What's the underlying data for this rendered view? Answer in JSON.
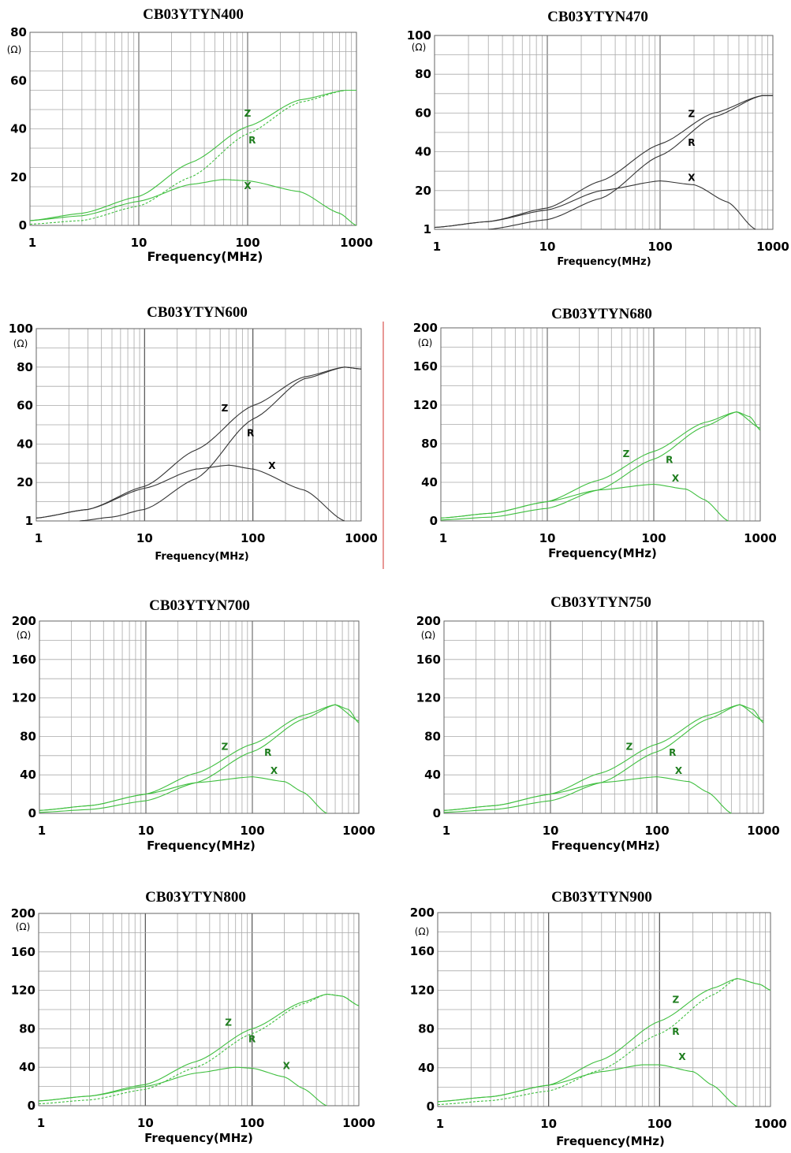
{
  "colors": {
    "green": "#3fbf3f",
    "green_label": "#1e7d1e",
    "black": "#333333",
    "divider": "#d9534f"
  },
  "chart_data": [
    {
      "type": "line",
      "title": "CB03YTYN400",
      "xlabel": "Frequency(MHz)",
      "unit": "(Ω)",
      "x_scale": "log",
      "xlim": [
        1,
        1000
      ],
      "xticks": [
        "1",
        "10",
        "100",
        "1000"
      ],
      "ylim": [
        0,
        80
      ],
      "yticks": [
        "0",
        "20",
        "40",
        "60",
        "80"
      ],
      "color": "green",
      "series": [
        {
          "name": "Z",
          "label_at": [
            100,
            45
          ],
          "x": [
            1,
            3,
            10,
            30,
            100,
            300,
            800,
            1000
          ],
          "y": [
            2,
            5,
            12,
            26,
            41,
            52,
            56,
            56
          ]
        },
        {
          "name": "R",
          "label_at": [
            110,
            34
          ],
          "dashed": true,
          "x": [
            1,
            3,
            10,
            30,
            100,
            300,
            800,
            1000
          ],
          "y": [
            0.5,
            2,
            8,
            20,
            38,
            51,
            56,
            56
          ]
        },
        {
          "name": "X",
          "label_at": [
            100,
            15
          ],
          "x": [
            1,
            3,
            10,
            30,
            60,
            100,
            300,
            700,
            1000
          ],
          "y": [
            2,
            4,
            10,
            17,
            19,
            18.5,
            14,
            5,
            0
          ]
        }
      ]
    },
    {
      "type": "line",
      "title": "CB03YTYN470",
      "xlabel": "Frequency(MHz)",
      "unit": "(Ω)",
      "x_scale": "log",
      "xlim": [
        1,
        1000
      ],
      "xticks": [
        "1",
        "10",
        "100",
        "1000"
      ],
      "ylim": [
        0,
        100
      ],
      "yticks": [
        "1",
        "20",
        "40",
        "60",
        "80",
        "100"
      ],
      "color": "black",
      "series": [
        {
          "name": "Z",
          "label_at": [
            190,
            58
          ],
          "x": [
            1,
            3,
            10,
            30,
            100,
            300,
            800,
            1000
          ],
          "y": [
            1,
            4,
            11,
            25,
            44,
            60,
            69,
            69
          ]
        },
        {
          "name": "R",
          "label_at": [
            190,
            43
          ],
          "x": [
            3,
            10,
            30,
            100,
            300,
            800,
            1000
          ],
          "y": [
            0,
            5,
            16,
            38,
            58,
            69,
            69
          ]
        },
        {
          "name": "X",
          "label_at": [
            190,
            25
          ],
          "x": [
            1,
            3,
            10,
            30,
            100,
            200,
            400,
            700
          ],
          "y": [
            1,
            4,
            10,
            20,
            25,
            23,
            14,
            0
          ]
        }
      ]
    },
    {
      "type": "line",
      "title": "CB03YTYN600",
      "xlabel": "Frequency(MHz)",
      "unit": "(Ω)",
      "x_scale": "log",
      "xlim": [
        1,
        1000
      ],
      "xticks": [
        "1",
        "10",
        "100",
        "1000"
      ],
      "ylim": [
        0,
        100
      ],
      "yticks": [
        "1",
        "20",
        "40",
        "60",
        "80",
        "100"
      ],
      "color": "black",
      "series": [
        {
          "name": "Z",
          "label_at": [
            55,
            57
          ],
          "x": [
            1,
            3,
            10,
            30,
            100,
            300,
            700,
            1000
          ],
          "y": [
            1.5,
            6,
            18,
            37,
            60,
            75,
            80,
            79
          ]
        },
        {
          "name": "R",
          "label_at": [
            95,
            44
          ],
          "x": [
            2.5,
            5,
            10,
            30,
            100,
            300,
            700,
            1000
          ],
          "y": [
            0,
            2,
            6,
            22,
            53,
            74,
            80,
            79
          ]
        },
        {
          "name": "X",
          "label_at": [
            150,
            27
          ],
          "x": [
            1,
            3,
            10,
            30,
            60,
            100,
            300,
            700
          ],
          "y": [
            1.5,
            6,
            17,
            27,
            29,
            27,
            16,
            0
          ]
        }
      ]
    },
    {
      "type": "line",
      "title": "CB03YTYN680",
      "xlabel": "Frequency(MHz)",
      "unit": "(Ω)",
      "x_scale": "log",
      "xlim": [
        1,
        1000
      ],
      "xticks": [
        "1",
        "10",
        "100",
        "1000"
      ],
      "ylim": [
        0,
        200
      ],
      "yticks": [
        "0",
        "40",
        "80",
        "120",
        "160",
        "200"
      ],
      "color": "green",
      "series": [
        {
          "name": "Z",
          "label_at": [
            55,
            66
          ],
          "x": [
            1,
            3,
            10,
            30,
            100,
            300,
            600,
            1000
          ],
          "y": [
            3,
            8,
            20,
            42,
            72,
            102,
            113,
            96
          ]
        },
        {
          "name": "R",
          "label_at": [
            140,
            60
          ],
          "x": [
            1,
            3,
            10,
            30,
            100,
            300,
            600,
            800,
            1000
          ],
          "y": [
            1,
            4,
            13,
            32,
            64,
            98,
            113,
            108,
            94
          ]
        },
        {
          "name": "X",
          "label_at": [
            160,
            41
          ],
          "x": [
            1,
            3,
            10,
            30,
            100,
            200,
            300,
            500
          ],
          "y": [
            3,
            8,
            20,
            32,
            38,
            33,
            22,
            0
          ]
        }
      ]
    },
    {
      "type": "line",
      "title": "CB03YTYN700",
      "xlabel": "Frequency(MHz)",
      "unit": "(Ω)",
      "x_scale": "log",
      "xlim": [
        1,
        1000
      ],
      "xticks": [
        "1",
        "10",
        "100",
        "1000"
      ],
      "ylim": [
        0,
        200
      ],
      "yticks": [
        "0",
        "40",
        "80",
        "120",
        "160",
        "200"
      ],
      "color": "green",
      "series": [
        {
          "name": "Z",
          "label_at": [
            55,
            66
          ],
          "x": [
            1,
            3,
            10,
            30,
            100,
            300,
            600,
            1000
          ],
          "y": [
            3,
            8,
            20,
            42,
            72,
            102,
            113,
            96
          ]
        },
        {
          "name": "R",
          "label_at": [
            140,
            60
          ],
          "x": [
            1,
            3,
            10,
            30,
            100,
            300,
            600,
            800,
            1000
          ],
          "y": [
            1,
            4,
            13,
            32,
            64,
            98,
            113,
            108,
            94
          ]
        },
        {
          "name": "X",
          "label_at": [
            160,
            41
          ],
          "x": [
            1,
            3,
            10,
            30,
            100,
            200,
            300,
            500
          ],
          "y": [
            3,
            8,
            20,
            32,
            38,
            33,
            22,
            0
          ]
        }
      ]
    },
    {
      "type": "line",
      "title": "CB03YTYN750",
      "xlabel": "Frequency(MHz)",
      "unit": "(Ω)",
      "x_scale": "log",
      "xlim": [
        1,
        1000
      ],
      "xticks": [
        "1",
        "10",
        "100",
        "1000"
      ],
      "ylim": [
        0,
        200
      ],
      "yticks": [
        "0",
        "40",
        "80",
        "120",
        "160",
        "200"
      ],
      "color": "green",
      "series": [
        {
          "name": "Z",
          "label_at": [
            55,
            66
          ],
          "x": [
            1,
            3,
            10,
            30,
            100,
            300,
            600,
            1000
          ],
          "y": [
            3,
            8,
            20,
            42,
            72,
            102,
            113,
            96
          ]
        },
        {
          "name": "R",
          "label_at": [
            140,
            60
          ],
          "x": [
            1,
            3,
            10,
            30,
            100,
            300,
            600,
            800,
            1000
          ],
          "y": [
            1,
            4,
            13,
            32,
            64,
            98,
            113,
            108,
            94
          ]
        },
        {
          "name": "X",
          "label_at": [
            160,
            41
          ],
          "x": [
            1,
            3,
            10,
            30,
            100,
            200,
            300,
            500
          ],
          "y": [
            3,
            8,
            20,
            32,
            38,
            33,
            22,
            0
          ]
        }
      ]
    },
    {
      "type": "line",
      "title": "CB03YTYN800",
      "xlabel": "Frequency(MHz)",
      "unit": "(Ω)",
      "x_scale": "log",
      "xlim": [
        1,
        1000
      ],
      "xticks": [
        "1",
        "10",
        "100",
        "1000"
      ],
      "ylim": [
        0,
        200
      ],
      "yticks": [
        "0",
        "40",
        "80",
        "120",
        "160",
        "200"
      ],
      "color": "green",
      "series": [
        {
          "name": "Z",
          "label_at": [
            60,
            83
          ],
          "x": [
            1,
            3,
            10,
            30,
            100,
            300,
            500,
            700,
            1000
          ],
          "y": [
            5,
            10,
            22,
            46,
            80,
            108,
            116,
            114,
            104
          ]
        },
        {
          "name": "R",
          "label_at": [
            100,
            66
          ],
          "dashed": true,
          "x": [
            1,
            3,
            10,
            30,
            100,
            300,
            500,
            700,
            1000
          ],
          "y": [
            2,
            6,
            17,
            40,
            75,
            106,
            116,
            114,
            104
          ]
        },
        {
          "name": "X",
          "label_at": [
            210,
            38
          ],
          "x": [
            1,
            3,
            10,
            30,
            70,
            100,
            200,
            300,
            500
          ],
          "y": [
            5,
            10,
            20,
            34,
            40,
            39,
            30,
            18,
            0
          ]
        }
      ]
    },
    {
      "type": "line",
      "title": "CB03YTYN900",
      "xlabel": "Frequency(MHz)",
      "unit": "(Ω)",
      "x_scale": "log",
      "xlim": [
        1,
        1000
      ],
      "xticks": [
        "1",
        "10",
        "100",
        "1000"
      ],
      "ylim": [
        0,
        200
      ],
      "yticks": [
        "0",
        "40",
        "80",
        "120",
        "160",
        "200"
      ],
      "color": "green",
      "series": [
        {
          "name": "Z",
          "label_at": [
            140,
            107
          ],
          "x": [
            1,
            3,
            10,
            30,
            100,
            300,
            500,
            800,
            1000
          ],
          "y": [
            5,
            10,
            22,
            48,
            88,
            122,
            132,
            126,
            120
          ]
        },
        {
          "name": "R",
          "label_at": [
            140,
            74
          ],
          "dashed": true,
          "x": [
            1,
            3,
            10,
            30,
            100,
            300,
            500,
            800,
            1000
          ],
          "y": [
            2,
            6,
            16,
            38,
            75,
            115,
            132,
            126,
            120
          ]
        },
        {
          "name": "X",
          "label_at": [
            160,
            48
          ],
          "x": [
            1,
            3,
            10,
            30,
            70,
            100,
            200,
            300,
            500
          ],
          "y": [
            5,
            10,
            22,
            36,
            43,
            43,
            36,
            22,
            0
          ]
        }
      ]
    }
  ]
}
